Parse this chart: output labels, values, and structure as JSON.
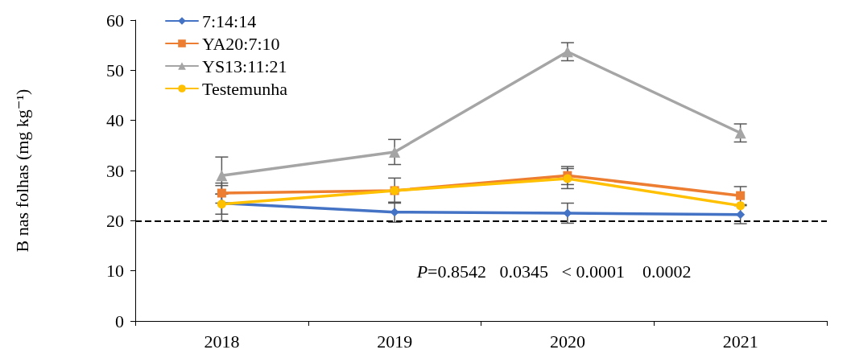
{
  "chart_data": {
    "type": "line",
    "ylabel": "B nas folhas (mg kg⁻¹)",
    "categories": [
      "2018",
      "2019",
      "2020",
      "2021"
    ],
    "series": [
      {
        "name": "7:14:14",
        "color": "#4472c4",
        "marker": "diamond",
        "values": [
          23.5,
          21.7,
          21.5,
          21.2
        ],
        "errors": [
          3.5,
          2,
          2,
          1.8
        ]
      },
      {
        "name": "YA20:7:10",
        "color": "#ed7d31",
        "marker": "square",
        "values": [
          25.5,
          26,
          29,
          25
        ],
        "errors": [
          2,
          2.5,
          1.8,
          1.8
        ]
      },
      {
        "name": "YS13:11:21",
        "color": "#a5a5a5",
        "marker": "triangle",
        "values": [
          29,
          33.7,
          53.7,
          37.5
        ],
        "errors": [
          3.7,
          2.5,
          1.8,
          1.8
        ]
      },
      {
        "name": "Testemunha",
        "color": "#ffc000",
        "marker": "circle",
        "values": [
          23.3,
          26,
          28.4,
          23
        ],
        "errors": [
          2,
          null,
          2,
          null
        ]
      }
    ],
    "ylim": [
      0,
      60
    ],
    "yticks": [
      0,
      10,
      20,
      30,
      40,
      50,
      60
    ],
    "grid": false,
    "legend": "top left",
    "line_style": "solid",
    "ref_lines": [
      {
        "axis": "y",
        "value": 20,
        "color": "#000000",
        "line_style": "dashed"
      }
    ],
    "annotations": [
      "P=0.8542   0.0345   < 0.0001    0.0002"
    ]
  }
}
